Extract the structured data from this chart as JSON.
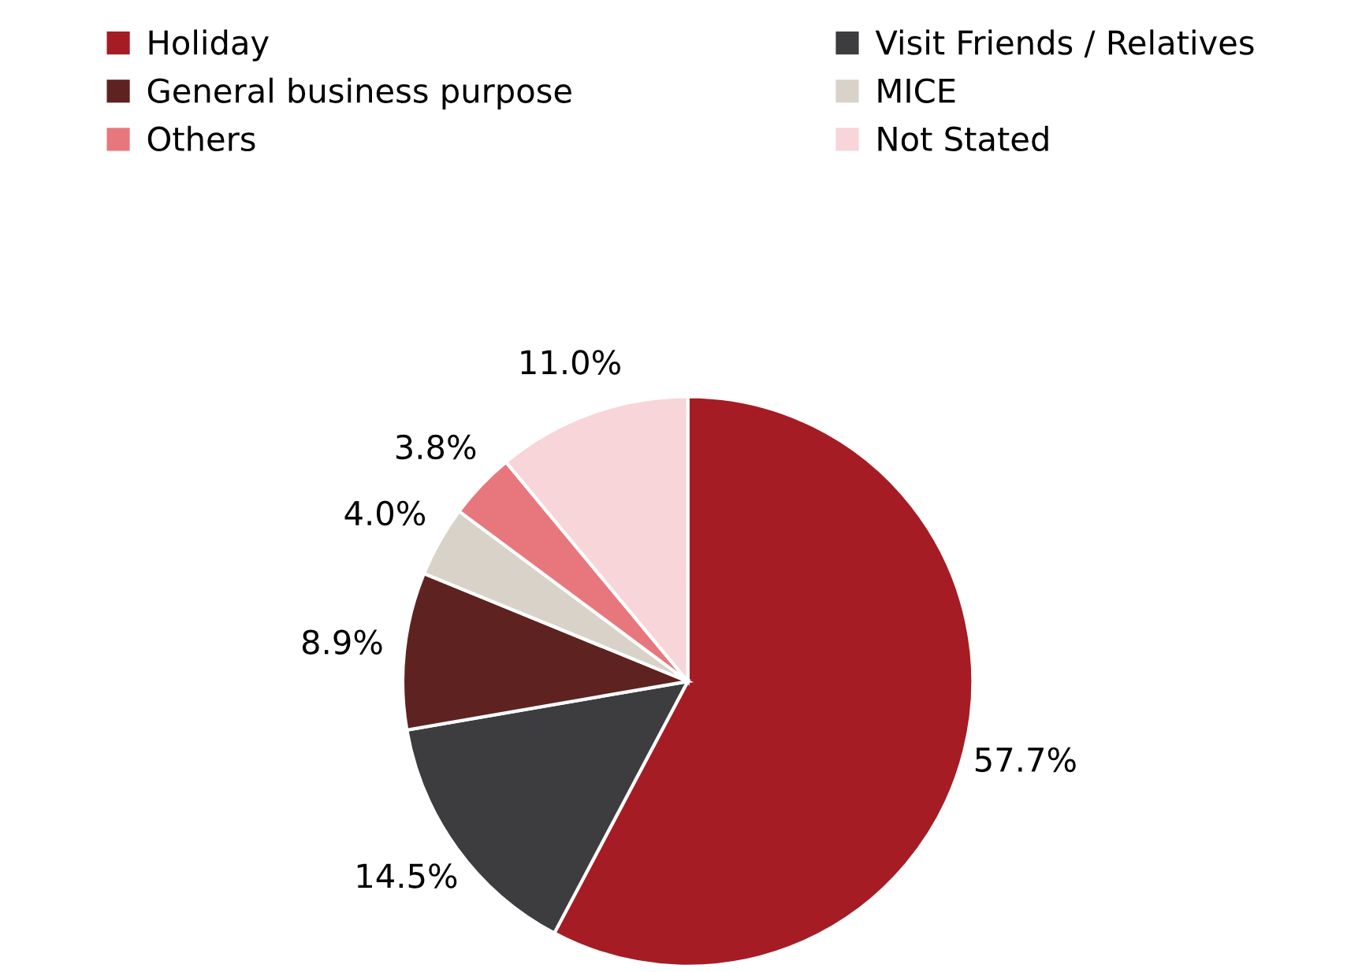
{
  "chart_data": {
    "type": "pie",
    "categories": [
      "Holiday",
      "Visit Friends / Relatives",
      "General business purpose",
      "MICE",
      "Others",
      "Not Stated"
    ],
    "values": [
      57.7,
      14.5,
      8.9,
      4.0,
      3.8,
      11.0
    ],
    "value_labels": [
      "57.7%",
      "14.5%",
      "8.9%",
      "4.0%",
      "3.8%",
      "11.0%"
    ],
    "colors": [
      "#a51c24",
      "#3d3d3f",
      "#5e2320",
      "#d9d2c9",
      "#e8777d",
      "#f7d5d8"
    ],
    "legend": "top"
  }
}
